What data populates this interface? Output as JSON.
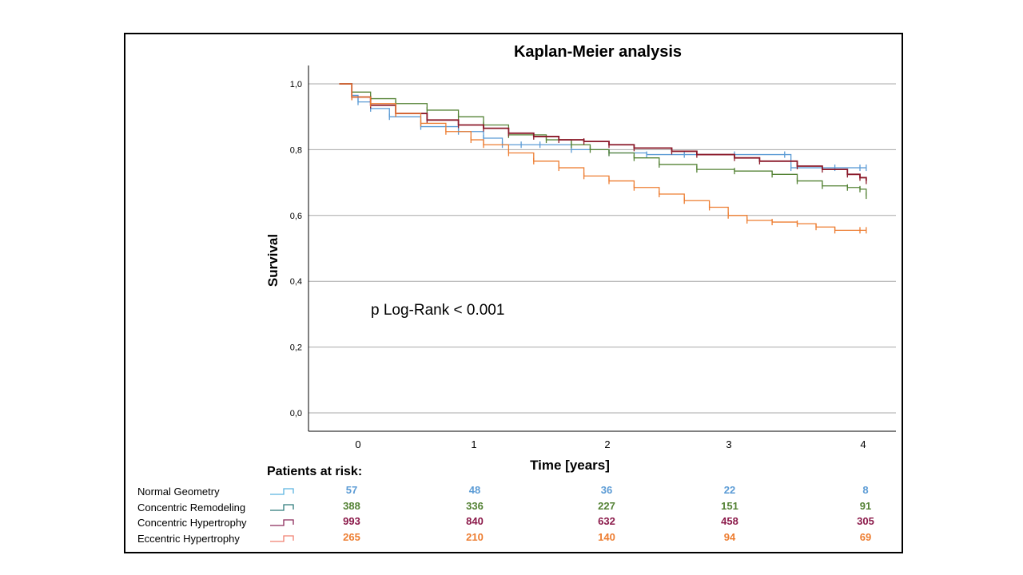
{
  "chart_data": {
    "type": "line",
    "title": "Kaplan-Meier analysis",
    "xlabel": "Time [years]",
    "ylabel": "Survival",
    "xlim": [
      -0.3,
      4.25
    ],
    "ylim": [
      -0.05,
      1.05
    ],
    "x_ticks": [
      "0",
      "1",
      "2",
      "3",
      "4"
    ],
    "y_ticks": [
      "0,0",
      "0,2",
      "0,4",
      "0,6",
      "0,8",
      "1,0"
    ],
    "grid": "horizontal",
    "annotation": "p Log-Rank < 0.001",
    "series": [
      {
        "name": "Normal Geometry",
        "color": "#5b9bd5",
        "points": [
          [
            -0.15,
            1.0
          ],
          [
            -0.05,
            0.965
          ],
          [
            0.0,
            0.945
          ],
          [
            0.1,
            0.925
          ],
          [
            0.25,
            0.9
          ],
          [
            0.5,
            0.87
          ],
          [
            0.8,
            0.855
          ],
          [
            1.0,
            0.835
          ],
          [
            1.15,
            0.815
          ],
          [
            1.3,
            0.815
          ],
          [
            1.45,
            0.815
          ],
          [
            1.7,
            0.8
          ],
          [
            2.0,
            0.79
          ],
          [
            2.3,
            0.785
          ],
          [
            2.6,
            0.785
          ],
          [
            3.0,
            0.785
          ],
          [
            3.4,
            0.785
          ],
          [
            3.45,
            0.745
          ],
          [
            3.8,
            0.745
          ],
          [
            4.0,
            0.745
          ],
          [
            4.05,
            0.745
          ]
        ]
      },
      {
        "name": "Concentric Remodeling",
        "color": "#548235",
        "points": [
          [
            -0.15,
            1.0
          ],
          [
            -0.05,
            0.975
          ],
          [
            0.1,
            0.955
          ],
          [
            0.3,
            0.94
          ],
          [
            0.55,
            0.92
          ],
          [
            0.8,
            0.9
          ],
          [
            1.0,
            0.875
          ],
          [
            1.2,
            0.845
          ],
          [
            1.5,
            0.83
          ],
          [
            1.7,
            0.815
          ],
          [
            1.85,
            0.8
          ],
          [
            2.0,
            0.79
          ],
          [
            2.2,
            0.775
          ],
          [
            2.4,
            0.755
          ],
          [
            2.7,
            0.74
          ],
          [
            3.0,
            0.735
          ],
          [
            3.3,
            0.725
          ],
          [
            3.5,
            0.705
          ],
          [
            3.7,
            0.69
          ],
          [
            3.9,
            0.685
          ],
          [
            4.0,
            0.68
          ],
          [
            4.05,
            0.66
          ]
        ]
      },
      {
        "name": "Concentric Hypertrophy",
        "color": "#8b1a2a",
        "points": [
          [
            -0.15,
            1.0
          ],
          [
            -0.05,
            0.96
          ],
          [
            0.1,
            0.935
          ],
          [
            0.3,
            0.91
          ],
          [
            0.55,
            0.89
          ],
          [
            0.8,
            0.875
          ],
          [
            1.0,
            0.865
          ],
          [
            1.2,
            0.85
          ],
          [
            1.4,
            0.84
          ],
          [
            1.6,
            0.83
          ],
          [
            1.8,
            0.825
          ],
          [
            2.0,
            0.815
          ],
          [
            2.2,
            0.805
          ],
          [
            2.5,
            0.795
          ],
          [
            2.7,
            0.785
          ],
          [
            3.0,
            0.775
          ],
          [
            3.2,
            0.765
          ],
          [
            3.5,
            0.75
          ],
          [
            3.7,
            0.74
          ],
          [
            3.9,
            0.725
          ],
          [
            4.0,
            0.715
          ],
          [
            4.05,
            0.705
          ]
        ]
      },
      {
        "name": "Eccentric Hypertrophy",
        "color": "#ed7d31",
        "points": [
          [
            -0.15,
            1.0
          ],
          [
            -0.05,
            0.96
          ],
          [
            0.1,
            0.94
          ],
          [
            0.3,
            0.91
          ],
          [
            0.5,
            0.88
          ],
          [
            0.7,
            0.855
          ],
          [
            0.9,
            0.83
          ],
          [
            1.0,
            0.815
          ],
          [
            1.2,
            0.79
          ],
          [
            1.4,
            0.765
          ],
          [
            1.6,
            0.745
          ],
          [
            1.8,
            0.72
          ],
          [
            2.0,
            0.705
          ],
          [
            2.2,
            0.685
          ],
          [
            2.4,
            0.665
          ],
          [
            2.6,
            0.645
          ],
          [
            2.8,
            0.625
          ],
          [
            2.95,
            0.6
          ],
          [
            3.1,
            0.585
          ],
          [
            3.3,
            0.58
          ],
          [
            3.5,
            0.575
          ],
          [
            3.65,
            0.565
          ],
          [
            3.8,
            0.555
          ],
          [
            4.0,
            0.555
          ],
          [
            4.05,
            0.555
          ]
        ]
      }
    ]
  },
  "risk_table": {
    "title": "Patients at risk:",
    "rows": [
      {
        "name": "Normal Geometry",
        "color": "#5b9bd5",
        "legend_color": "#5bb3e0",
        "values": [
          "57",
          "48",
          "36",
          "22",
          "8"
        ]
      },
      {
        "name": "Concentric Remodeling",
        "color": "#548235",
        "legend_color": "#2e7b7b",
        "values": [
          "388",
          "336",
          "227",
          "151",
          "91"
        ]
      },
      {
        "name": "Concentric Hypertrophy",
        "color": "#8b1a4a",
        "legend_color": "#8b2a5a",
        "values": [
          "993",
          "840",
          "632",
          "458",
          "305"
        ]
      },
      {
        "name": "Eccentric Hypertrophy",
        "color": "#ed7d31",
        "legend_color": "#f08070",
        "values": [
          "265",
          "210",
          "140",
          "94",
          "69"
        ]
      }
    ]
  }
}
